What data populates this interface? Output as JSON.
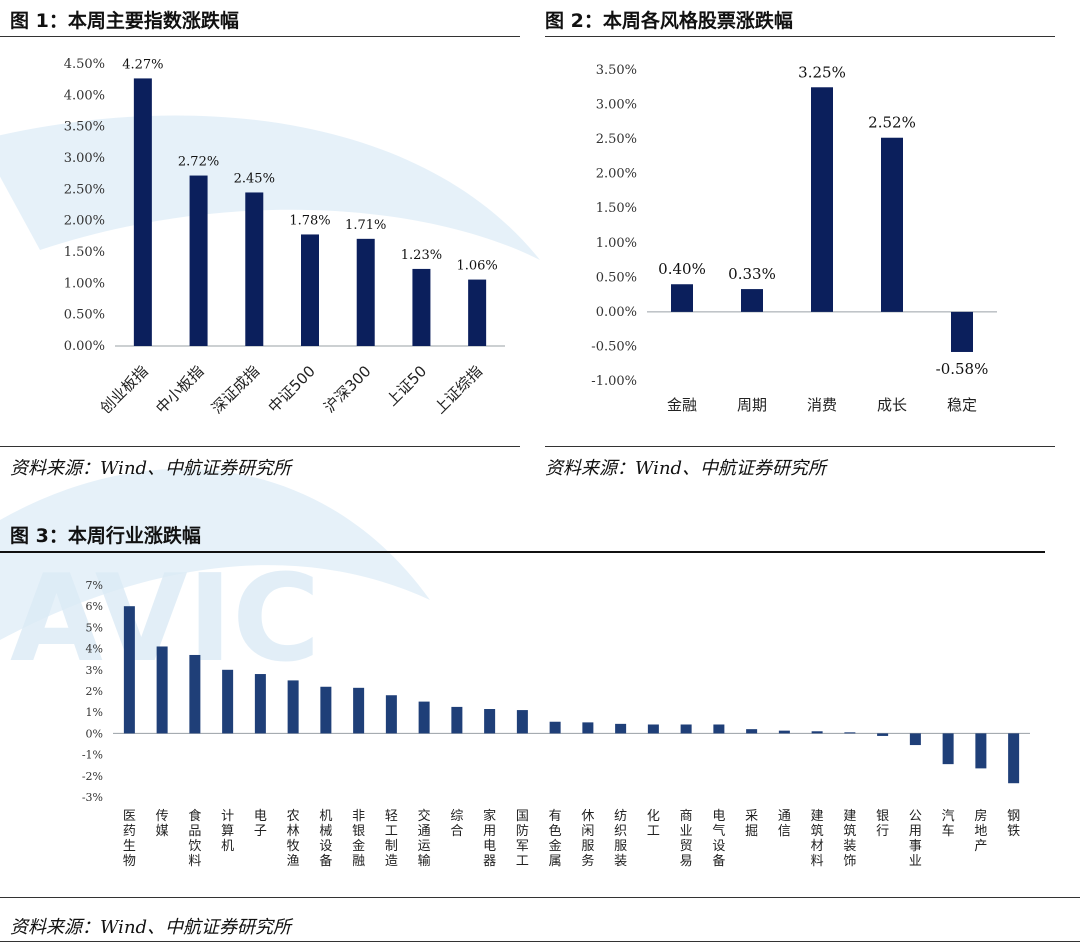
{
  "figures": [
    {
      "title": "图 1：本周主要指数涨跌幅",
      "source": "资料来源：Wind、中航证券研究所"
    },
    {
      "title": "图 2：本周各风格股票涨跌幅",
      "source": "资料来源：Wind、中航证券研究所"
    },
    {
      "title": "图 3：本周行业涨跌幅",
      "source": "资料来源：Wind、中航证券研究所"
    }
  ],
  "watermark": {
    "text": "AVIC",
    "color": "#cfe3f2"
  },
  "colors": {
    "bar": "#0b1f5c",
    "bar3": "#1f3f78",
    "axis": "#9aa0a6"
  },
  "chart_data": [
    {
      "type": "bar",
      "categories": [
        "创业板指",
        "中小板指",
        "深证成指",
        "中证500",
        "沪深300",
        "上证50",
        "上证综指"
      ],
      "values": [
        4.27,
        2.72,
        2.45,
        1.78,
        1.71,
        1.23,
        1.06
      ],
      "value_labels": [
        "4.27%",
        "2.72%",
        "2.45%",
        "1.78%",
        "1.71%",
        "1.23%",
        "1.06%"
      ],
      "ylim": [
        0,
        4.5
      ],
      "yticks": [
        0,
        0.5,
        1,
        1.5,
        2,
        2.5,
        3,
        3.5,
        4,
        4.5
      ],
      "ytick_labels": [
        "0.00%",
        "0.50%",
        "1.00%",
        "1.50%",
        "2.00%",
        "2.50%",
        "3.00%",
        "3.50%",
        "4.00%",
        "4.50%"
      ]
    },
    {
      "type": "bar",
      "categories": [
        "金融",
        "周期",
        "消费",
        "成长",
        "稳定"
      ],
      "values": [
        0.4,
        0.33,
        3.25,
        2.52,
        -0.58
      ],
      "value_labels": [
        "0.40%",
        "0.33%",
        "3.25%",
        "2.52%",
        "-0.58%"
      ],
      "ylim": [
        -1.0,
        3.5
      ],
      "yticks": [
        -1,
        -0.5,
        0,
        0.5,
        1,
        1.5,
        2,
        2.5,
        3,
        3.5
      ],
      "ytick_labels": [
        "-1.00%",
        "-0.50%",
        "0.00%",
        "0.50%",
        "1.00%",
        "1.50%",
        "2.00%",
        "2.50%",
        "3.00%",
        "3.50%"
      ]
    },
    {
      "type": "bar",
      "categories": [
        "医药生物",
        "传媒",
        "食品饮料",
        "计算机",
        "电子",
        "农林牧渔",
        "机械设备",
        "非银金融",
        "轻工制造",
        "交通运输",
        "综合",
        "家用电器",
        "国防军工",
        "有色金属",
        "休闲服务",
        "纺织服装",
        "化工",
        "商业贸易",
        "电气设备",
        "采掘",
        "通信",
        "建筑材料",
        "建筑装饰",
        "银行",
        "公用事业",
        "汽车",
        "房地产",
        "钢铁"
      ],
      "values": [
        6.0,
        4.1,
        3.7,
        3.0,
        2.8,
        2.5,
        2.2,
        2.15,
        1.8,
        1.5,
        1.25,
        1.15,
        1.1,
        0.55,
        0.52,
        0.45,
        0.42,
        0.42,
        0.42,
        0.2,
        0.13,
        0.1,
        0.05,
        -0.12,
        -0.55,
        -1.45,
        -1.65,
        -2.35
      ],
      "ylim": [
        -3,
        7
      ],
      "yticks": [
        -3,
        -2,
        -1,
        0,
        1,
        2,
        3,
        4,
        5,
        6,
        7
      ],
      "ytick_labels": [
        "-3%",
        "-2%",
        "-1%",
        "0%",
        "1%",
        "2%",
        "3%",
        "4%",
        "5%",
        "6%",
        "7%"
      ]
    }
  ]
}
